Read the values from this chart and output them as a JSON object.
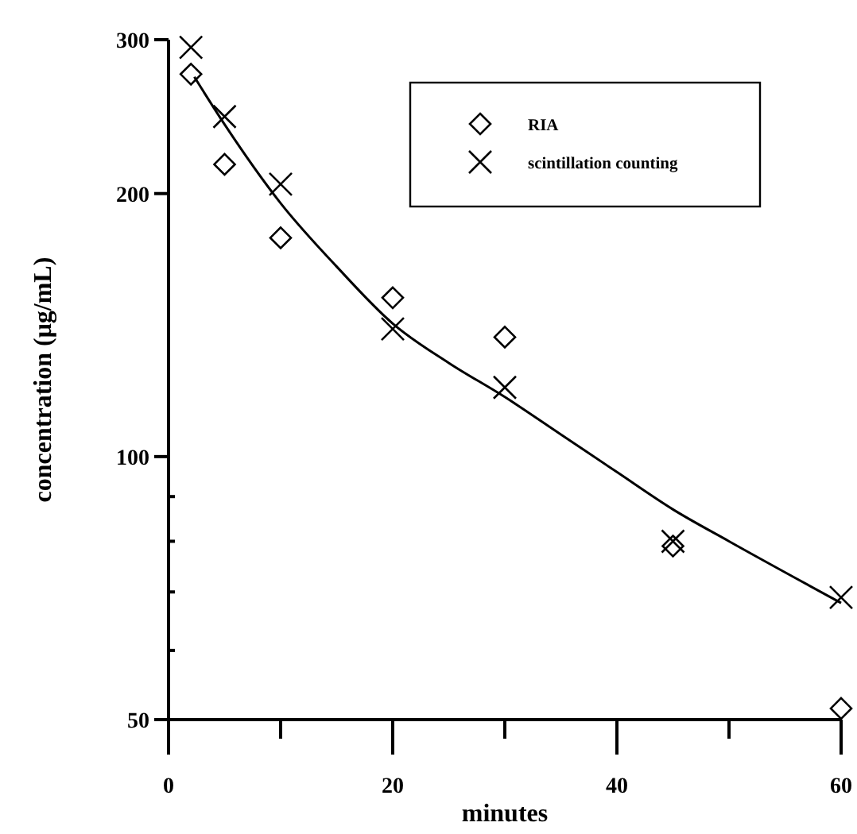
{
  "chart_data": {
    "type": "scatter",
    "xlabel": "minutes",
    "ylabel": "concentration (μg/mL)",
    "log": "y",
    "xlim": [
      0,
      60
    ],
    "xticks": [
      0,
      {
        "value": 10,
        "label": null
      },
      20,
      {
        "value": 30,
        "label": null
      },
      40,
      {
        "value": 50,
        "label": null
      },
      60
    ],
    "ylim": [
      50,
      300
    ],
    "yticks": [
      50,
      {
        "value": 60,
        "label": null
      },
      {
        "value": 70,
        "label": null
      },
      {
        "value": 80,
        "label": null
      },
      {
        "value": 90,
        "label": null
      },
      100,
      200,
      300
    ],
    "grid": false,
    "legend": "top right",
    "series": [
      {
        "name": "RIA",
        "marker": "diamond",
        "color": "#000000",
        "x": [
          2,
          5,
          10,
          20,
          30,
          45,
          60
        ],
        "values": [
          274,
          216,
          178,
          152,
          137,
          79,
          51.5
        ]
      },
      {
        "name": "scintillation counting",
        "marker": "cross",
        "color": "#000000",
        "x": [
          2,
          5,
          10,
          20,
          30,
          45,
          60
        ],
        "values": [
          294,
          245,
          205,
          140,
          120,
          80,
          69
        ]
      },
      {
        "type": "line",
        "marker": "none",
        "line_style": "solid",
        "color": "#000000",
        "x": [
          2.3,
          5,
          10,
          15,
          20,
          25,
          30,
          35,
          40,
          45,
          50,
          60
        ],
        "values": [
          272,
          240,
          195,
          165,
          142,
          128,
          117,
          106,
          96,
          87,
          80,
          68
        ]
      }
    ]
  }
}
